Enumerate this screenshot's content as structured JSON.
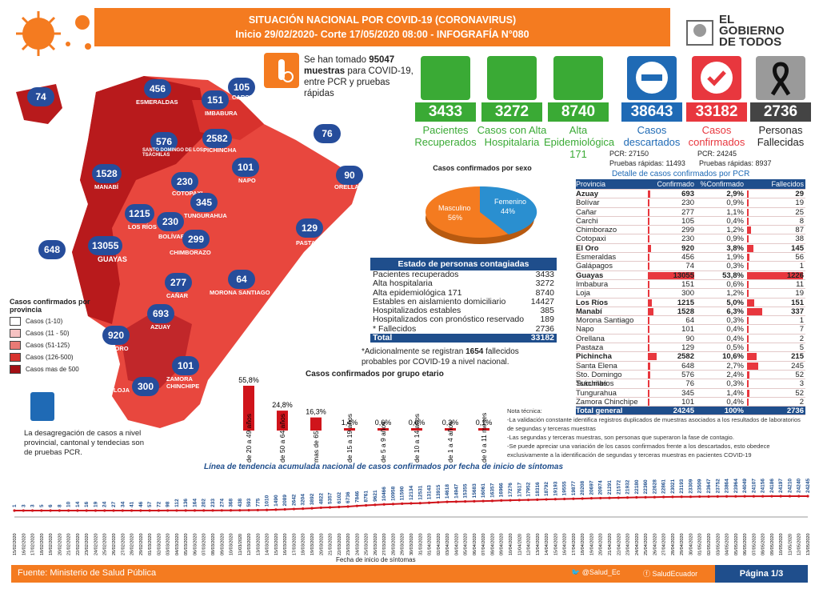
{
  "header": {
    "line1": "SITUACIÓN NACIONAL POR  COVID-19 (CORONAVIRUS)",
    "line2": "Inicio 29/02/2020- Corte 17/05/2020 08:00  - INFOGRAFÍA N°080"
  },
  "logo": {
    "line1": "EL",
    "line2": "GOBIERNO",
    "line3": "DE TODOS"
  },
  "samples": {
    "pre": "Se han tomado",
    "value": "95047",
    "bold": "muestras",
    "rest": "para COVID-19, entre PCR y pruebas rápidas"
  },
  "stats": [
    {
      "value": "3433",
      "label": "Pacientes Recuperados",
      "color": "#3aaa35"
    },
    {
      "value": "3272",
      "label": "Casos con Alta Hospitalaria",
      "color": "#3aaa35"
    },
    {
      "value": "8740",
      "label": "Alta Epidemiológica 171",
      "color": "#3aaa35"
    },
    {
      "value": "38643",
      "label": "Casos descartados",
      "color": "#1f6ab5"
    },
    {
      "value": "33182",
      "label": "Casos confirmados",
      "color": "#e8373e"
    },
    {
      "value": "2736",
      "label": "Personas Fallecidas",
      "color": "#444444"
    }
  ],
  "pcr_line": {
    "descartados_pcr": "PCR: 27150",
    "confirmados_pcr": "PCR: 24245",
    "rapidas_desc": "Pruebas rápidas: 11493",
    "rapidas_conf": "Pruebas rápidas: 8937"
  },
  "map": {
    "provinces": [
      {
        "name": "ESMERALDAS",
        "value": "456"
      },
      {
        "name": "CARCHI",
        "value": "105"
      },
      {
        "name": "IMBABURA",
        "value": "151"
      },
      {
        "name": "GALÁPAGOS",
        "value": "74"
      },
      {
        "name": "SANTO DOMINGO DE LOS TSÁCHILAS",
        "value": "576"
      },
      {
        "name": "PICHINCHA",
        "value": "2582"
      },
      {
        "name": "SUCUMBÍOS",
        "value": "76"
      },
      {
        "name": "MANABÍ",
        "value": "1528"
      },
      {
        "name": "COTOPAXI",
        "value": "230"
      },
      {
        "name": "NAPO",
        "value": "101"
      },
      {
        "name": "ORELLANA",
        "value": "90"
      },
      {
        "name": "TUNGURAHUA",
        "value": "345"
      },
      {
        "name": "LOS RÍOS",
        "value": "1215"
      },
      {
        "name": "BOLÍVAR",
        "value": "230"
      },
      {
        "name": "PASTAZA",
        "value": "129"
      },
      {
        "name": "SANTA ELENA",
        "value": "648"
      },
      {
        "name": "GUAYAS",
        "value": "13055"
      },
      {
        "name": "CHIMBORAZO",
        "value": "299"
      },
      {
        "name": "MORONA SANTIAGO",
        "value": "64"
      },
      {
        "name": "CAÑAR",
        "value": "277"
      },
      {
        "name": "AZUAY",
        "value": "693"
      },
      {
        "name": "EL ORO",
        "value": "920"
      },
      {
        "name": "ZAMORA CHINCHIPE",
        "value": "101"
      },
      {
        "name": "LOJA",
        "value": "300"
      }
    ],
    "legend_title": "Casos confirmados por provincia",
    "legend": [
      {
        "label": "Casos (1-10)",
        "color": "#ffffff"
      },
      {
        "label": "Casos (11 - 50)",
        "color": "#f6c2c2"
      },
      {
        "label": "Casos (51-125)",
        "color": "#ea7a75"
      },
      {
        "label": "Casos (126-500)",
        "color": "#d8322d"
      },
      {
        "label": "Casos mas de 500",
        "color": "#a30f14"
      }
    ],
    "note": "La desagregación de casos a nivel provincial, cantonal y tendecias son de pruebas PCR."
  },
  "sex_chart": {
    "title": "Casos confirmados por sexo",
    "male_label": "Masculino",
    "male_pct": "56%",
    "female_label": "Femenino",
    "female_pct": "44%",
    "male_value": 56,
    "female_value": 44
  },
  "estado": {
    "title": "Estado de personas contagiadas",
    "rows": [
      {
        "label": "Pacientes recuperados",
        "value": "3433"
      },
      {
        "label": "Alta hospitalaria",
        "value": "3272"
      },
      {
        "label": "Alta epidemiológica 171",
        "value": "8740"
      },
      {
        "label": "Estables en aislamiento domiciliario",
        "value": "14427"
      },
      {
        "label": "Hospitalizados estables",
        "value": "385"
      },
      {
        "label": "Hospitalizados con pronóstico reservado",
        "value": "189"
      },
      {
        "label": "* Fallecidos",
        "value": "2736"
      }
    ],
    "total_label": "Total",
    "total_value": "33182"
  },
  "adicional": {
    "pre": "*Adicionalmente se registran",
    "value": "1654",
    "post": "fallecidos probables por COVID-19 a nivel nacional."
  },
  "age_chart": {
    "title": "Casos confirmados por grupo etario",
    "groups": [
      {
        "label": "de 20 a 49 años",
        "pct": "55,8%",
        "value": 55.8
      },
      {
        "label": "de 50 a 64 años",
        "pct": "24,8%",
        "value": 24.8
      },
      {
        "label": "mas de 65",
        "pct": "16,3%",
        "value": 16.3
      },
      {
        "label": "de 15 a 19 años",
        "pct": "1,4%",
        "value": 1.4
      },
      {
        "label": "de 5 a 9 años",
        "pct": "0,6%",
        "value": 0.6
      },
      {
        "label": "de 10 a 14 años",
        "pct": "0,6%",
        "value": 0.6
      },
      {
        "label": "de 1 a 4 años",
        "pct": "0,3%",
        "value": 0.3
      },
      {
        "label": "de 0 a 11 meses",
        "pct": "0,1%",
        "value": 0.1
      }
    ]
  },
  "pcr_table": {
    "title": "Detalle de casos confirmados por PCR",
    "headers": [
      "Provincia",
      "Confirmado",
      "%Confirmado",
      "Fallecidos"
    ],
    "rows": [
      [
        "Azuay",
        "693",
        "2,9%",
        "29"
      ],
      [
        "Bolívar",
        "230",
        "0,9%",
        "19"
      ],
      [
        "Cañar",
        "277",
        "1,1%",
        "25"
      ],
      [
        "Carchi",
        "105",
        "0,4%",
        "8"
      ],
      [
        "Chimborazo",
        "299",
        "1,2%",
        "87"
      ],
      [
        "Cotopaxi",
        "230",
        "0,9%",
        "38"
      ],
      [
        "El Oro",
        "920",
        "3,8%",
        "145"
      ],
      [
        "Esmeraldas",
        "456",
        "1,9%",
        "56"
      ],
      [
        "Galápagos",
        "74",
        "0,3%",
        "1"
      ],
      [
        "Guayas",
        "13055",
        "53,8%",
        "1226"
      ],
      [
        "Imbabura",
        "151",
        "0,6%",
        "11"
      ],
      [
        "Loja",
        "300",
        "1,2%",
        "19"
      ],
      [
        "Los Ríos",
        "1215",
        "5,0%",
        "151"
      ],
      [
        "Manabí",
        "1528",
        "6,3%",
        "337"
      ],
      [
        "Morona Santiago",
        "64",
        "0,3%",
        "1"
      ],
      [
        "Napo",
        "101",
        "0,4%",
        "7"
      ],
      [
        "Orellana",
        "90",
        "0,4%",
        "2"
      ],
      [
        "Pastaza",
        "129",
        "0,5%",
        "5"
      ],
      [
        "Pichincha",
        "2582",
        "10,6%",
        "215"
      ],
      [
        "Santa Elena",
        "648",
        "2,7%",
        "245"
      ],
      [
        "Sto. Domingo Tsáchilas",
        "576",
        "2,4%",
        "52"
      ],
      [
        "Sucumbíos",
        "76",
        "0,3%",
        "3"
      ],
      [
        "Tungurahua",
        "345",
        "1,4%",
        "52"
      ],
      [
        "Zamora Chinchipe",
        "101",
        "0,4%",
        "2"
      ]
    ],
    "total": [
      "Total general",
      "24245",
      "100%",
      "2736"
    ]
  },
  "notes": {
    "title": "Nota técnica:",
    "items": [
      "-La validación constante identifica registros duplicados de muestras asociados a los resultados de laboratorios de segundas y terceras muestras",
      "-Las segundas y terceras muestras, son personas que superaron la fase de contagio.",
      "-Se puede apreciar una variación de los casos confirmados frente a los descartados, esto obedece exclusivamente a la identificación de segundas y terceras muestras en pacientes COVID-19"
    ]
  },
  "chart_data": {
    "type": "line",
    "title": "Línea de tendencia acumulada nacional de casos confirmados por fecha de inicio de síntomas",
    "xlabel": "Fecha de inicio de síntomas",
    "ylabel": "",
    "x": [
      "15/02/2020",
      "16/02/2020",
      "17/02/2020",
      "18/02/2020",
      "19/02/2020",
      "20/02/2020",
      "21/02/2020",
      "22/02/2020",
      "23/02/2020",
      "24/02/2020",
      "25/02/2020",
      "26/02/2020",
      "27/02/2020",
      "28/02/2020",
      "29/02/2020",
      "01/03/2020",
      "02/03/2020",
      "03/03/2020",
      "04/03/2020",
      "05/03/2020",
      "06/03/2020",
      "07/03/2020",
      "08/03/2020",
      "09/03/2020",
      "10/03/2020",
      "11/03/2020",
      "12/03/2020",
      "13/03/2020",
      "14/03/2020",
      "15/03/2020",
      "16/03/2020",
      "17/03/2020",
      "18/03/2020",
      "19/03/2020",
      "20/03/2020",
      "21/03/2020",
      "22/03/2020",
      "23/03/2020",
      "24/03/2020",
      "25/03/2020",
      "26/03/2020",
      "27/03/2020",
      "28/03/2020",
      "29/03/2020",
      "30/03/2020",
      "31/03/2020",
      "01/04/2020",
      "02/04/2020",
      "03/04/2020",
      "04/04/2020",
      "05/04/2020",
      "06/04/2020",
      "07/04/2020",
      "08/04/2020",
      "09/04/2020",
      "10/04/2020",
      "11/04/2020",
      "12/04/2020",
      "13/04/2020",
      "14/04/2020",
      "15/04/2020",
      "16/04/2020",
      "17/04/2020",
      "18/04/2020",
      "19/04/2020",
      "20/04/2020",
      "21/04/2020",
      "22/04/2020",
      "23/04/2020",
      "24/04/2020",
      "25/04/2020",
      "26/04/2020",
      "27/04/2020",
      "28/04/2020",
      "29/04/2020",
      "30/04/2020",
      "01/05/2020",
      "02/05/2020",
      "03/05/2020",
      "04/05/2020",
      "05/05/2020",
      "06/05/2020",
      "07/05/2020",
      "08/05/2020",
      "09/05/2020",
      "10/05/2020",
      "11/05/2020",
      "12/05/2020",
      "13/05/2020"
    ],
    "y": [
      1,
      3,
      3,
      5,
      6,
      8,
      10,
      14,
      16,
      19,
      24,
      27,
      34,
      41,
      46,
      57,
      72,
      98,
      112,
      136,
      164,
      202,
      233,
      274,
      368,
      438,
      593,
      775,
      1010,
      1490,
      2089,
      2642,
      3204,
      3892,
      4822,
      5357,
      6102,
      6736,
      7846,
      8761,
      9621,
      10466,
      10958,
      11590,
      12134,
      12531,
      13143,
      13915,
      14618,
      14947,
      15355,
      15683,
      16061,
      16357,
      16966,
      17276,
      17617,
      17952,
      18316,
      18792,
      19193,
      19555,
      19877,
      20208,
      20697,
      20974,
      21291,
      21572,
      21932,
      22180,
      22360,
      22628,
      22861,
      23021,
      23193,
      23309,
      23509,
      23647,
      23752,
      23864,
      23964,
      24049,
      24107,
      24156,
      24186,
      24197,
      24210,
      24240,
      24245
    ]
  },
  "footer": {
    "source_label": "Fuente:",
    "source": "Ministerio de Salud Pública",
    "twitter": "@Salud_Ec",
    "facebook": "SaludEcuador",
    "page": "Página 1/3"
  }
}
